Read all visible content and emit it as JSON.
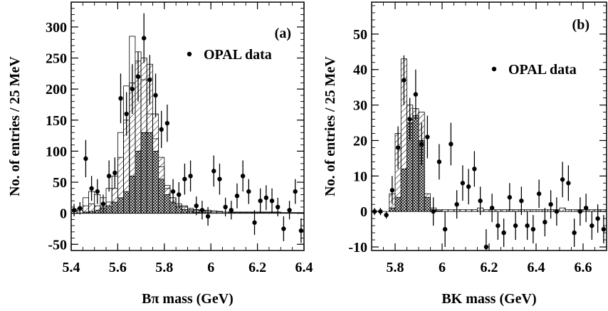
{
  "chart_data": [
    {
      "type": "scatter",
      "panel_label": "(a)",
      "xlabel": "Bπ mass (GeV)",
      "ylabel": "No. of entries / 25 MeV",
      "xlim": [
        5.4,
        6.4
      ],
      "ylim": [
        -60,
        340
      ],
      "xticks": [
        5.4,
        5.6,
        5.8,
        6,
        6.2,
        6.4
      ],
      "xtick_labels": [
        "5.4",
        "5.6",
        "5.8",
        "6",
        "6.2",
        "6.4"
      ],
      "yticks": [
        -50,
        0,
        50,
        100,
        150,
        200,
        250,
        300
      ],
      "ytick_labels": [
        "-50",
        "0",
        "50",
        "100",
        "150",
        "200",
        "250",
        "300"
      ],
      "legend": {
        "marker": "•",
        "label": "OPAL data",
        "placement": "top-right"
      },
      "bin_width": 0.025,
      "series": [
        {
          "kind": "points",
          "x": [
            5.4125,
            5.4375,
            5.4625,
            5.4875,
            5.5125,
            5.5375,
            5.5625,
            5.5875,
            5.6125,
            5.6375,
            5.6625,
            5.6875,
            5.7125,
            5.7375,
            5.7625,
            5.7875,
            5.8125,
            5.8375,
            5.8625,
            5.8875,
            5.9125,
            5.9375,
            5.9625,
            5.9875,
            6.0125,
            6.0375,
            6.0625,
            6.0875,
            6.1125,
            6.1375,
            6.1625,
            6.1875,
            6.2125,
            6.2375,
            6.2625,
            6.2875,
            6.3125,
            6.3375,
            6.3625,
            6.3875
          ],
          "y": [
            5,
            8,
            88,
            40,
            35,
            15,
            60,
            65,
            185,
            160,
            200,
            220,
            282,
            215,
            190,
            135,
            145,
            35,
            30,
            55,
            60,
            12,
            5,
            -5,
            68,
            55,
            10,
            5,
            28,
            60,
            35,
            -15,
            20,
            25,
            20,
            10,
            -25,
            5,
            35,
            -28
          ],
          "err": [
            10,
            10,
            30,
            20,
            20,
            15,
            25,
            25,
            40,
            35,
            40,
            40,
            40,
            40,
            35,
            30,
            30,
            20,
            20,
            25,
            25,
            15,
            15,
            15,
            25,
            25,
            15,
            15,
            20,
            25,
            20,
            20,
            20,
            20,
            20,
            15,
            20,
            15,
            20,
            20
          ]
        },
        {
          "kind": "histogram",
          "name_hint": "hatched",
          "values": [
            3,
            5,
            12,
            15,
            12,
            10,
            18,
            40,
            90,
            150,
            210,
            245,
            250,
            240,
            160,
            90,
            45,
            25,
            15,
            12,
            8,
            6,
            5,
            5,
            4,
            3,
            2,
            2,
            2,
            2,
            2,
            2,
            2,
            2,
            2,
            2,
            1,
            1,
            1,
            1
          ]
        },
        {
          "kind": "histogram",
          "name_hint": "cross-hatched",
          "values": [
            0,
            0,
            2,
            3,
            5,
            8,
            12,
            18,
            25,
            35,
            60,
            100,
            130,
            130,
            100,
            55,
            30,
            18,
            10,
            6,
            4,
            2,
            1,
            1,
            0,
            0,
            0,
            0,
            0,
            0,
            0,
            0,
            0,
            0,
            0,
            0,
            0,
            0,
            0,
            0
          ]
        },
        {
          "kind": "histogram",
          "name_hint": "open",
          "values": [
            5,
            8,
            25,
            35,
            30,
            25,
            40,
            60,
            130,
            205,
            285,
            260,
            215,
            160,
            120,
            75,
            40,
            25,
            12,
            10,
            6,
            5,
            4,
            3,
            2,
            2,
            2,
            1,
            1,
            1,
            1,
            1,
            1,
            1,
            1,
            1,
            1,
            1,
            1,
            1
          ]
        }
      ]
    },
    {
      "type": "scatter",
      "panel_label": "(b)",
      "xlabel": "BK mass (GeV)",
      "ylabel": "No. of entries / 25 MeV",
      "xlim": [
        5.7,
        6.7
      ],
      "ylim": [
        -11,
        59
      ],
      "xticks": [
        5.8,
        6,
        6.2,
        6.4,
        6.6
      ],
      "xtick_labels": [
        "5.8",
        "6",
        "6.2",
        "6.4",
        "6.6"
      ],
      "yticks": [
        -10,
        0,
        10,
        20,
        30,
        40,
        50
      ],
      "ytick_labels": [
        "-10",
        "0",
        "10",
        "20",
        "30",
        "40",
        "50"
      ],
      "legend": {
        "marker": "•",
        "label": "OPAL data",
        "placement": "top-right"
      },
      "bin_width": 0.025,
      "series": [
        {
          "kind": "points",
          "x": [
            5.7125,
            5.7375,
            5.7625,
            5.7875,
            5.8125,
            5.8375,
            5.8625,
            5.8875,
            5.9125,
            5.9375,
            5.9625,
            5.9875,
            6.0125,
            6.0375,
            6.0625,
            6.0875,
            6.1125,
            6.1375,
            6.1625,
            6.1875,
            6.2125,
            6.2375,
            6.2625,
            6.2875,
            6.3125,
            6.3375,
            6.3625,
            6.3875,
            6.4125,
            6.4375,
            6.4625,
            6.4875,
            6.5125,
            6.5375,
            6.5625,
            6.5875,
            6.6125,
            6.6375,
            6.6625,
            6.6875
          ],
          "y": [
            0,
            0,
            -1,
            6,
            18,
            37,
            26,
            33,
            19,
            21,
            0,
            14,
            -5,
            19,
            2,
            8,
            7,
            12,
            3,
            -10,
            1,
            -4,
            -6,
            4,
            -4,
            3,
            -4,
            -5,
            5,
            -3,
            2,
            0,
            9,
            8,
            -6,
            0,
            1,
            -4,
            -2,
            -5
          ],
          "err": [
            1,
            1,
            1,
            4,
            6,
            7,
            6,
            7,
            6,
            6,
            4,
            5,
            5,
            6,
            4,
            5,
            5,
            5,
            4,
            5,
            4,
            4,
            4,
            4,
            4,
            4,
            4,
            4,
            4,
            4,
            4,
            4,
            5,
            5,
            4,
            4,
            4,
            4,
            4,
            4
          ]
        },
        {
          "kind": "histogram",
          "name_hint": "hatched",
          "values": [
            0,
            0,
            0,
            5,
            22,
            43,
            30,
            29,
            28,
            5,
            1,
            0.5,
            0.5,
            0.5,
            0.5,
            0.5,
            0.5,
            0.5,
            1,
            0.5,
            0.5,
            0.5,
            0.5,
            0.5,
            0.5,
            0.5,
            0.5,
            0.5,
            0.5,
            0.5,
            0.5,
            0.5,
            1,
            0.5,
            0.5,
            0.5,
            0.5,
            0.5,
            0.5,
            0.5
          ]
        },
        {
          "kind": "histogram",
          "name_hint": "cross-hatched",
          "values": [
            0,
            0,
            0,
            1,
            4,
            12,
            25,
            27,
            20,
            4,
            0.5,
            0.2,
            0,
            0,
            0,
            0,
            0,
            0,
            0,
            0,
            0,
            0,
            0,
            0,
            0,
            0,
            0,
            0,
            0,
            0,
            0,
            0,
            0,
            0,
            0,
            0,
            0,
            0,
            0,
            0
          ]
        }
      ]
    }
  ]
}
